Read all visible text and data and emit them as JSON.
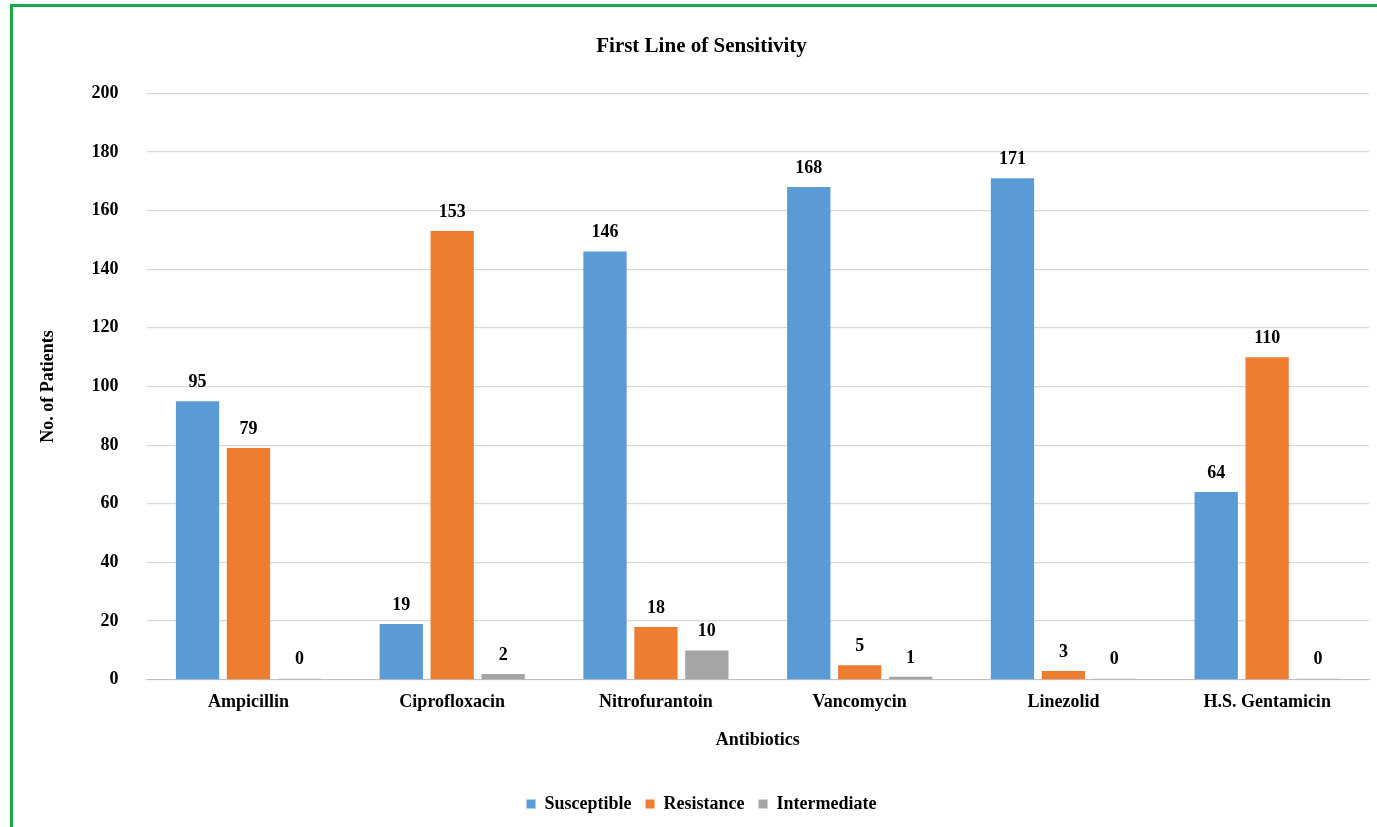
{
  "chart_data": {
    "type": "bar",
    "title": "First Line of Sensitivity",
    "xlabel": "Antibiotics",
    "ylabel": "No. of Patients",
    "categories": [
      "Ampicillin",
      "Ciprofloxacin",
      "Nitrofurantoin",
      "Vancomycin",
      "Linezolid",
      "H.S. Gentamicin"
    ],
    "series": [
      {
        "name": "Susceptible",
        "color": "#5b9bd5",
        "values": [
          95,
          19,
          146,
          168,
          171,
          64
        ]
      },
      {
        "name": "Resistance",
        "color": "#ed7d31",
        "values": [
          79,
          153,
          18,
          5,
          3,
          110
        ]
      },
      {
        "name": "Intermediate",
        "color": "#a5a5a5",
        "values": [
          0,
          2,
          10,
          1,
          0,
          0
        ]
      }
    ],
    "ylim": [
      0,
      200
    ],
    "yticks": [
      0,
      20,
      40,
      60,
      80,
      100,
      120,
      140,
      160,
      180,
      200
    ],
    "grid": "y",
    "legend": "bottom",
    "data_labels": true
  }
}
